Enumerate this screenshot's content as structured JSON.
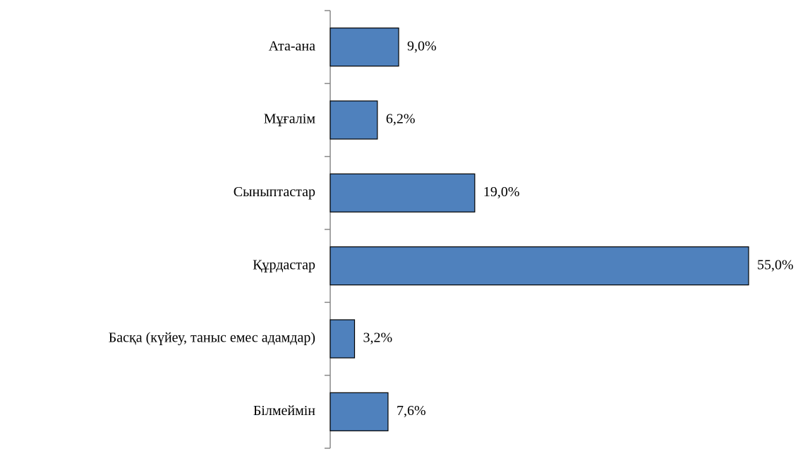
{
  "chart_data": {
    "type": "bar",
    "orientation": "horizontal",
    "categories": [
      "Ата-ана",
      "Мұғалім",
      "Сыныптастар",
      "Құрдастар",
      "Басқа (күйеу, таныс емес адамдар)",
      "Білмеймін"
    ],
    "values": [
      9.0,
      6.2,
      19.0,
      55.0,
      3.2,
      7.6
    ],
    "value_labels": [
      "9,0%",
      "6,2%",
      "19,0%",
      "55,0%",
      "3,2%",
      "7,6%"
    ],
    "color": "#4f81bd"
  }
}
